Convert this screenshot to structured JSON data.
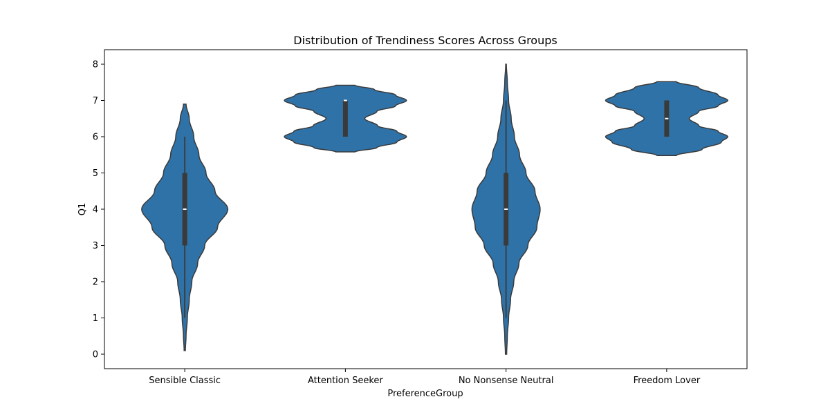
{
  "chart_data": {
    "type": "violin",
    "title": "Distribution of Trendiness Scores Across Groups",
    "xlabel": "PreferenceGroup",
    "ylabel": "Q1",
    "categories": [
      "Sensible Classic",
      "Attention Seeker",
      "No Nonsense Neutral",
      "Freedom Lover"
    ],
    "ylim": [
      -0.4,
      8.4
    ],
    "yticks": [
      "0",
      "1",
      "2",
      "3",
      "4",
      "5",
      "6",
      "7",
      "8"
    ],
    "grid": false,
    "legend": "none",
    "violin_color": "#2f72a8",
    "edge_color": "#3a3a3a",
    "groups": [
      {
        "name": "Sensible Classic",
        "range": [
          0.1,
          6.9
        ],
        "box": {
          "q1": 3,
          "median": 4,
          "q3": 5,
          "whisker_low": 1,
          "whisker_high": 6
        },
        "density": [
          [
            0.1,
            0.01
          ],
          [
            0.5,
            0.02
          ],
          [
            1.0,
            0.04
          ],
          [
            1.5,
            0.07
          ],
          [
            2.0,
            0.11
          ],
          [
            2.5,
            0.2
          ],
          [
            3.0,
            0.31
          ],
          [
            3.5,
            0.51
          ],
          [
            4.0,
            0.67
          ],
          [
            4.5,
            0.47
          ],
          [
            5.0,
            0.33
          ],
          [
            5.5,
            0.22
          ],
          [
            6.0,
            0.14
          ],
          [
            6.5,
            0.07
          ],
          [
            6.9,
            0.02
          ]
        ]
      },
      {
        "name": "Attention Seeker",
        "range": [
          5.58,
          7.42
        ],
        "box": {
          "q1": 6,
          "median": 7,
          "q3": 7,
          "whisker_low": 6,
          "whisker_high": 7
        },
        "density": [
          [
            5.58,
            0.15
          ],
          [
            5.7,
            0.49
          ],
          [
            5.85,
            0.8
          ],
          [
            6.0,
            0.95
          ],
          [
            6.15,
            0.8
          ],
          [
            6.3,
            0.5
          ],
          [
            6.5,
            0.3
          ],
          [
            6.7,
            0.49
          ],
          [
            6.85,
            0.78
          ],
          [
            7.0,
            0.95
          ],
          [
            7.15,
            0.78
          ],
          [
            7.3,
            0.45
          ],
          [
            7.42,
            0.15
          ]
        ]
      },
      {
        "name": "No Nonsense Neutral",
        "range": [
          0.0,
          8.0
        ],
        "box": {
          "q1": 3,
          "median": 4,
          "q3": 5,
          "whisker_low": 1,
          "whisker_high": 7
        },
        "density": [
          [
            0.0,
            0.01
          ],
          [
            0.5,
            0.02
          ],
          [
            1.0,
            0.04
          ],
          [
            1.5,
            0.07
          ],
          [
            2.0,
            0.12
          ],
          [
            2.5,
            0.2
          ],
          [
            3.0,
            0.34
          ],
          [
            3.5,
            0.48
          ],
          [
            4.0,
            0.53
          ],
          [
            4.5,
            0.45
          ],
          [
            5.0,
            0.31
          ],
          [
            5.5,
            0.21
          ],
          [
            6.0,
            0.13
          ],
          [
            6.5,
            0.08
          ],
          [
            7.0,
            0.04
          ],
          [
            7.5,
            0.02
          ],
          [
            8.0,
            0.005
          ]
        ]
      },
      {
        "name": "Freedom Lover",
        "range": [
          5.48,
          7.52
        ],
        "box": {
          "q1": 6,
          "median": 6.5,
          "q3": 7,
          "whisker_low": 6,
          "whisker_high": 7
        },
        "density": [
          [
            5.48,
            0.15
          ],
          [
            5.65,
            0.55
          ],
          [
            5.85,
            0.85
          ],
          [
            6.0,
            0.95
          ],
          [
            6.15,
            0.8
          ],
          [
            6.3,
            0.5
          ],
          [
            6.5,
            0.35
          ],
          [
            6.7,
            0.5
          ],
          [
            6.85,
            0.8
          ],
          [
            7.0,
            0.95
          ],
          [
            7.15,
            0.8
          ],
          [
            7.35,
            0.5
          ],
          [
            7.52,
            0.15
          ]
        ]
      }
    ]
  }
}
